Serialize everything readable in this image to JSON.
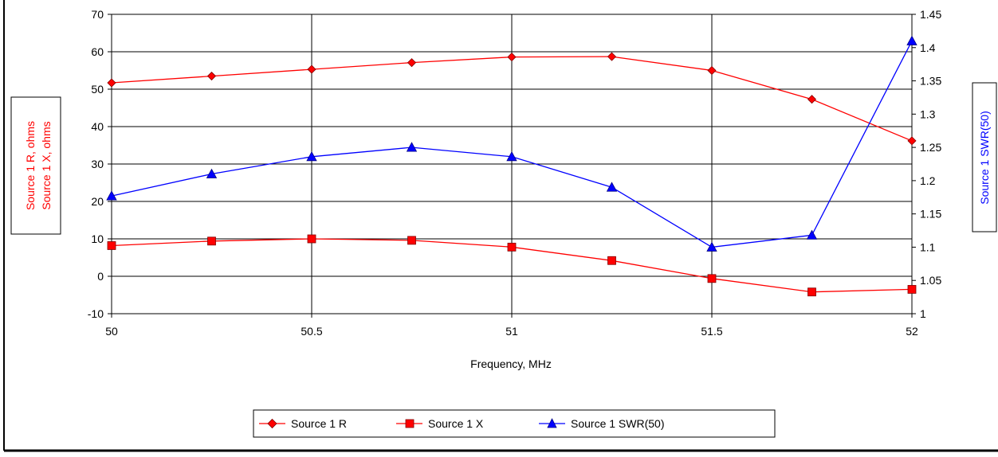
{
  "chart_data": {
    "type": "line",
    "xlabel": "Frequency, MHz",
    "ylabel_left": [
      "Source 1 R,  ohms",
      "Source 1 X,  ohms"
    ],
    "ylabel_right": "Source 1 SWR(50)",
    "x": [
      50,
      50.25,
      50.5,
      50.75,
      51,
      51.25,
      51.5,
      51.75,
      52
    ],
    "xlim": [
      50,
      52
    ],
    "x_ticks": [
      "50",
      "50.5",
      "51",
      "51.5",
      "52"
    ],
    "ylim_left": [
      -10,
      70
    ],
    "y_left_ticks": [
      "-10",
      "0",
      "10",
      "20",
      "30",
      "40",
      "50",
      "60",
      "70"
    ],
    "ylim_right": [
      1,
      1.45
    ],
    "y_right_ticks": [
      "1",
      "1.05",
      "1.1",
      "1.15",
      "1.2",
      "1.25",
      "1.3",
      "1.35",
      "1.4",
      "1.45"
    ],
    "grid": true,
    "legend_position": "bottom-center",
    "series": [
      {
        "name": "Source 1 R",
        "axis": "left",
        "marker": "diamond",
        "color": "#ff0000",
        "values": [
          51.7,
          53.5,
          55.3,
          57.1,
          58.6,
          58.7,
          55.0,
          47.3,
          36.2
        ]
      },
      {
        "name": "Source 1 X",
        "axis": "left",
        "marker": "square",
        "color": "#ff0000",
        "values": [
          8.2,
          9.4,
          10.0,
          9.6,
          7.8,
          4.2,
          -0.6,
          -4.2,
          -3.5
        ]
      },
      {
        "name": "Source 1 SWR(50)",
        "axis": "right",
        "marker": "triangle",
        "color": "#0000ff",
        "values": [
          1.177,
          1.21,
          1.236,
          1.25,
          1.236,
          1.19,
          1.1,
          1.118,
          1.41
        ]
      }
    ]
  },
  "colors": {
    "left_axis_title": "#ff0000",
    "right_axis_title": "#0000ff",
    "grid": "#000000",
    "frame": "#000000"
  }
}
